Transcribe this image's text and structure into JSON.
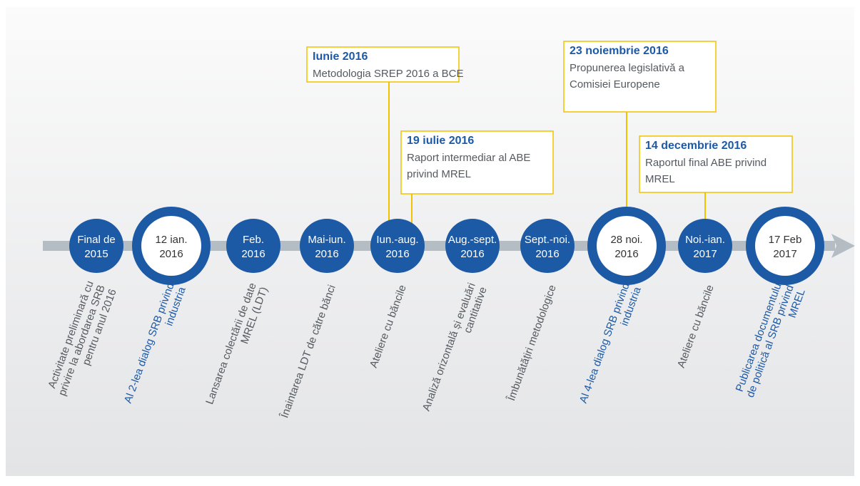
{
  "nodes": [
    {
      "date": [
        "Final de",
        "2015"
      ],
      "text": [
        "Activitate preliminară cu",
        "privire la abordarea SRB",
        "pentru anul 2016"
      ],
      "major": false
    },
    {
      "date": [
        "12 ian.",
        "2016"
      ],
      "text": [
        "Al 2-lea dialog SRB privind",
        "industria"
      ],
      "major": true
    },
    {
      "date": [
        "Feb.",
        "2016"
      ],
      "text": [
        "Lansarea colectării de date",
        "MREL (LDT)"
      ],
      "major": false
    },
    {
      "date": [
        "Mai-iun.",
        "2016"
      ],
      "text": [
        "Înaintarea LDT de către bănci"
      ],
      "major": false
    },
    {
      "date": [
        "Iun.-aug.",
        "2016"
      ],
      "text": [
        "Ateliere cu băncile"
      ],
      "major": false
    },
    {
      "date": [
        "Aug.-sept.",
        "2016"
      ],
      "text": [
        "Analiză orizontală și evaluări",
        "cantitative"
      ],
      "major": false
    },
    {
      "date": [
        "Sept.-noi.",
        "2016"
      ],
      "text": [
        "Îmbunătățiri metodologice"
      ],
      "major": false
    },
    {
      "date": [
        "28 noi.",
        "2016"
      ],
      "text": [
        "Al 4-lea dialog SRB privind",
        "industria"
      ],
      "major": true
    },
    {
      "date": [
        "Noi.-ian.",
        "2017"
      ],
      "text": [
        "Ateliere cu băncile"
      ],
      "major": false
    },
    {
      "date": [
        "17 Feb",
        "2017"
      ],
      "text": [
        "Publicarea documentului",
        "de politică al SRB privind",
        "MREL"
      ],
      "major": true
    }
  ],
  "callouts": [
    {
      "date": "Iunie 2016",
      "text": [
        "Metodologia SREP 2016 a BCE"
      ]
    },
    {
      "date": "19 iulie 2016",
      "text": [
        "Raport intermediar al ABE",
        "privind MREL"
      ]
    },
    {
      "date": "23 noiembrie 2016",
      "text": [
        "Propunerea legislativă a",
        "Comisiei Europene"
      ]
    },
    {
      "date": "14 decembrie 2016",
      "text": [
        "Raportul final ABE privind",
        "MREL"
      ]
    }
  ]
}
